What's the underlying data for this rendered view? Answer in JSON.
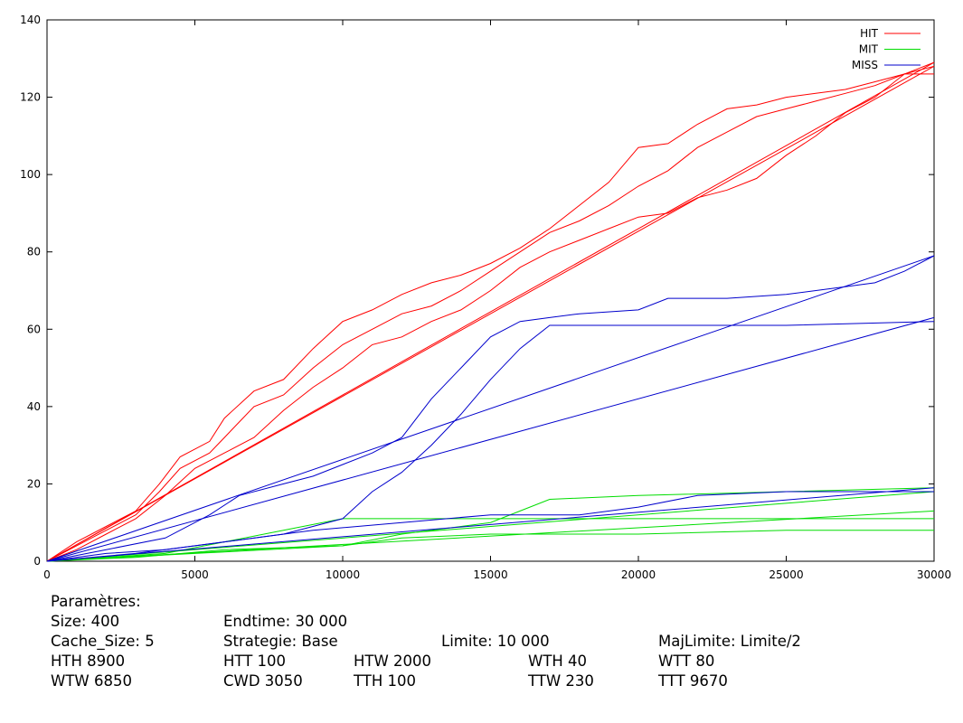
{
  "chart_data": {
    "type": "line",
    "xlim": [
      0,
      30000
    ],
    "ylim": [
      0,
      140
    ],
    "x_ticks": [
      "0",
      "5000",
      "10000",
      "15000",
      "20000",
      "25000",
      "30000"
    ],
    "y_ticks": [
      "0",
      "20",
      "40",
      "60",
      "80",
      "100",
      "120",
      "140"
    ],
    "legend": {
      "position": "top-right",
      "entries": [
        "HIT",
        "MIT",
        "MISS"
      ]
    },
    "colors": {
      "HIT": "#ff0000",
      "MIT": "#00dd00",
      "MISS": "#0000cc"
    },
    "series": [
      {
        "name": "HIT",
        "group": "HIT",
        "points": [
          [
            0,
            0
          ],
          [
            1000,
            5
          ],
          [
            2000,
            9
          ],
          [
            3000,
            13
          ],
          [
            3800,
            20
          ],
          [
            4500,
            27
          ],
          [
            5500,
            31
          ],
          [
            6000,
            37
          ],
          [
            7000,
            44
          ],
          [
            8000,
            47
          ],
          [
            9000,
            55
          ],
          [
            10000,
            62
          ],
          [
            11000,
            65
          ],
          [
            12000,
            69
          ],
          [
            13000,
            72
          ],
          [
            14000,
            74
          ],
          [
            15000,
            77
          ],
          [
            16000,
            81
          ],
          [
            17000,
            86
          ],
          [
            18000,
            92
          ],
          [
            19000,
            98
          ],
          [
            20000,
            107
          ],
          [
            21000,
            108
          ],
          [
            22000,
            113
          ],
          [
            23000,
            117
          ],
          [
            24000,
            118
          ],
          [
            25000,
            120
          ],
          [
            26000,
            121
          ],
          [
            27000,
            122
          ],
          [
            28000,
            124
          ],
          [
            29000,
            126
          ],
          [
            30000,
            126
          ]
        ]
      },
      {
        "name": "",
        "group": "HIT",
        "points": [
          [
            0,
            0
          ],
          [
            1000,
            4
          ],
          [
            2000,
            8
          ],
          [
            3000,
            12
          ],
          [
            3800,
            18
          ],
          [
            4500,
            24
          ],
          [
            5500,
            28
          ],
          [
            6000,
            32
          ],
          [
            7000,
            40
          ],
          [
            8000,
            43
          ],
          [
            9000,
            50
          ],
          [
            10000,
            56
          ],
          [
            11000,
            60
          ],
          [
            12000,
            64
          ],
          [
            13000,
            66
          ],
          [
            14000,
            70
          ],
          [
            15000,
            75
          ],
          [
            16000,
            80
          ],
          [
            17000,
            85
          ],
          [
            18000,
            88
          ],
          [
            19000,
            92
          ],
          [
            20000,
            97
          ],
          [
            21000,
            101
          ],
          [
            22000,
            107
          ],
          [
            23000,
            111
          ],
          [
            24000,
            115
          ],
          [
            25000,
            117
          ],
          [
            26000,
            119
          ],
          [
            27000,
            121
          ],
          [
            28000,
            123
          ],
          [
            29000,
            126
          ],
          [
            30000,
            128
          ]
        ]
      },
      {
        "name": "",
        "group": "HIT",
        "points": [
          [
            0,
            0
          ],
          [
            1000,
            3
          ],
          [
            2000,
            7
          ],
          [
            3000,
            11
          ],
          [
            4000,
            17
          ],
          [
            5000,
            24
          ],
          [
            6000,
            28
          ],
          [
            7000,
            32
          ],
          [
            8000,
            39
          ],
          [
            9000,
            45
          ],
          [
            10000,
            50
          ],
          [
            11000,
            56
          ],
          [
            12000,
            58
          ],
          [
            13000,
            62
          ],
          [
            14000,
            65
          ],
          [
            15000,
            70
          ],
          [
            16000,
            76
          ],
          [
            17000,
            80
          ],
          [
            18000,
            83
          ],
          [
            19000,
            86
          ],
          [
            20000,
            89
          ],
          [
            21000,
            90
          ],
          [
            22000,
            94
          ],
          [
            23000,
            96
          ],
          [
            24000,
            99
          ],
          [
            25000,
            105
          ],
          [
            26000,
            110
          ],
          [
            27000,
            116
          ],
          [
            28000,
            120
          ],
          [
            29000,
            126
          ],
          [
            30000,
            129
          ]
        ]
      },
      {
        "name": "",
        "group": "HIT",
        "points": [
          [
            0,
            0
          ],
          [
            30000,
            128
          ]
        ]
      },
      {
        "name": "",
        "group": "HIT",
        "points": [
          [
            0,
            0
          ],
          [
            30000,
            129
          ]
        ]
      },
      {
        "name": "MIT",
        "group": "MIT",
        "points": [
          [
            0,
            0
          ],
          [
            5000,
            2
          ],
          [
            10000,
            4
          ],
          [
            12000,
            7
          ],
          [
            15000,
            10
          ],
          [
            16000,
            13
          ],
          [
            17000,
            16
          ],
          [
            20000,
            17
          ],
          [
            25000,
            18
          ],
          [
            30000,
            19
          ]
        ]
      },
      {
        "name": "",
        "group": "MIT",
        "points": [
          [
            0,
            0
          ],
          [
            2000,
            1
          ],
          [
            4000,
            2
          ],
          [
            6000,
            5
          ],
          [
            8000,
            8
          ],
          [
            10000,
            11
          ],
          [
            15000,
            11
          ],
          [
            20000,
            11
          ],
          [
            25000,
            11
          ],
          [
            30000,
            11
          ]
        ]
      },
      {
        "name": "",
        "group": "MIT",
        "points": [
          [
            0,
            0
          ],
          [
            3000,
            1
          ],
          [
            6000,
            3
          ],
          [
            10000,
            4
          ],
          [
            12000,
            6
          ],
          [
            15000,
            7
          ],
          [
            20000,
            7
          ],
          [
            25000,
            8
          ],
          [
            30000,
            8
          ]
        ]
      },
      {
        "name": "",
        "group": "MIT",
        "points": [
          [
            0,
            0
          ],
          [
            30000,
            13
          ]
        ]
      },
      {
        "name": "",
        "group": "MIT",
        "points": [
          [
            0,
            0
          ],
          [
            30000,
            18
          ]
        ]
      },
      {
        "name": "MISS",
        "group": "MISS",
        "points": [
          [
            0,
            0
          ],
          [
            2000,
            3
          ],
          [
            4000,
            6
          ],
          [
            5500,
            12
          ],
          [
            6500,
            17
          ],
          [
            8000,
            20
          ],
          [
            9000,
            22
          ],
          [
            10000,
            25
          ],
          [
            11000,
            28
          ],
          [
            12000,
            32
          ],
          [
            13000,
            42
          ],
          [
            14000,
            50
          ],
          [
            15000,
            58
          ],
          [
            16000,
            62
          ],
          [
            17000,
            63
          ],
          [
            18000,
            64
          ],
          [
            20000,
            65
          ],
          [
            21000,
            68
          ],
          [
            23000,
            68
          ],
          [
            25000,
            69
          ],
          [
            27000,
            71
          ],
          [
            28000,
            72
          ],
          [
            29000,
            75
          ],
          [
            30000,
            79
          ]
        ]
      },
      {
        "name": "",
        "group": "MISS",
        "points": [
          [
            0,
            0
          ],
          [
            2000,
            2
          ],
          [
            4000,
            3
          ],
          [
            6000,
            5
          ],
          [
            8000,
            7
          ],
          [
            10000,
            11
          ],
          [
            11000,
            18
          ],
          [
            12000,
            23
          ],
          [
            13000,
            30
          ],
          [
            14000,
            38
          ],
          [
            15000,
            47
          ],
          [
            16000,
            55
          ],
          [
            17000,
            61
          ],
          [
            20000,
            61
          ],
          [
            25000,
            61
          ],
          [
            30000,
            62
          ]
        ]
      },
      {
        "name": "",
        "group": "MISS",
        "points": [
          [
            0,
            0
          ],
          [
            3000,
            2
          ],
          [
            6000,
            5
          ],
          [
            9000,
            8
          ],
          [
            12000,
            10
          ],
          [
            15000,
            12
          ],
          [
            18000,
            12
          ],
          [
            20000,
            14
          ],
          [
            22000,
            17
          ],
          [
            25000,
            18
          ],
          [
            30000,
            18
          ]
        ]
      },
      {
        "name": "",
        "group": "MISS",
        "points": [
          [
            0,
            0
          ],
          [
            30000,
            79
          ]
        ]
      },
      {
        "name": "",
        "group": "MISS",
        "points": [
          [
            0,
            0
          ],
          [
            30000,
            63
          ]
        ]
      },
      {
        "name": "",
        "group": "MISS",
        "points": [
          [
            0,
            0
          ],
          [
            30000,
            19
          ]
        ]
      }
    ]
  },
  "params": {
    "title": "Paramètres:",
    "rows": [
      [
        "Size: 400",
        "Endtime: 30 000",
        "",
        "",
        ""
      ],
      [
        "Cache_Size: 5",
        "Strategie: Base",
        "",
        "Limite: 10 000",
        "MajLimite: Limite/2"
      ],
      [
        "HTH 8900",
        "HTT 100",
        "HTW 2000",
        "WTH 40",
        "WTT 80"
      ],
      [
        "WTW 6850",
        "CWD 3050",
        "TTH 100",
        "TTW 230",
        "TTT 9670"
      ]
    ]
  }
}
